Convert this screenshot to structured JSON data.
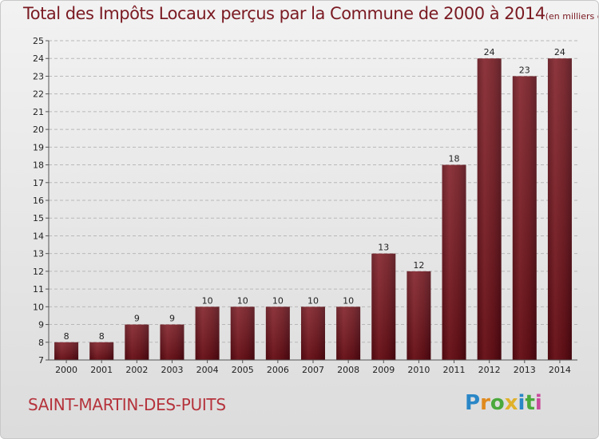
{
  "chart_data": {
    "type": "bar",
    "title": "Total des Impôts Locaux perçus par la Commune de 2000 à 2014",
    "unit_note": "(en milliers d'€)",
    "categories": [
      "2000",
      "2001",
      "2002",
      "2003",
      "2004",
      "2005",
      "2006",
      "2007",
      "2008",
      "2009",
      "2010",
      "2011",
      "2012",
      "2013",
      "2014"
    ],
    "values": [
      8,
      8,
      9,
      9,
      10,
      10,
      10,
      10,
      10,
      13,
      12,
      18,
      24,
      23,
      24
    ],
    "ylim": [
      7,
      25
    ],
    "yticks": [
      7,
      8,
      9,
      10,
      11,
      12,
      13,
      14,
      15,
      16,
      17,
      18,
      19,
      20,
      21,
      22,
      23,
      24,
      25
    ],
    "grid": true,
    "bar_color": "#7a1a22"
  },
  "commune": "SAINT-MARTIN-DES-PUITS",
  "logo": {
    "text": "Proxiti"
  }
}
